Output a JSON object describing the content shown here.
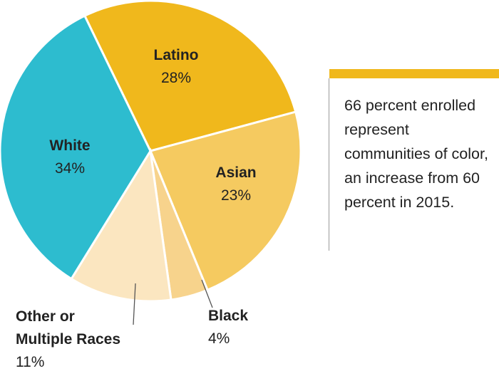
{
  "chart_data": {
    "type": "pie",
    "slices": [
      {
        "label": "Latino",
        "value": 28,
        "value_label": "28%",
        "color": "#F0B81C"
      },
      {
        "label": "Asian",
        "value": 23,
        "value_label": "23%",
        "color": "#F5CA60"
      },
      {
        "label": "Black",
        "value": 4,
        "value_label": "4%",
        "color": "#F7D38C"
      },
      {
        "label": "Other or Multiple Races",
        "label_lines": [
          "Other or",
          "Multiple Races"
        ],
        "value": 11,
        "value_label": "11%",
        "color": "#FBE6C0"
      },
      {
        "label": "White",
        "value": 34,
        "value_label": "34%",
        "color": "#2DBCCF"
      }
    ]
  },
  "note": {
    "text": "66 percent enrolled represent communities of color, an increase from 60 percent in 2015.",
    "accent_color": "#F0B81C"
  }
}
